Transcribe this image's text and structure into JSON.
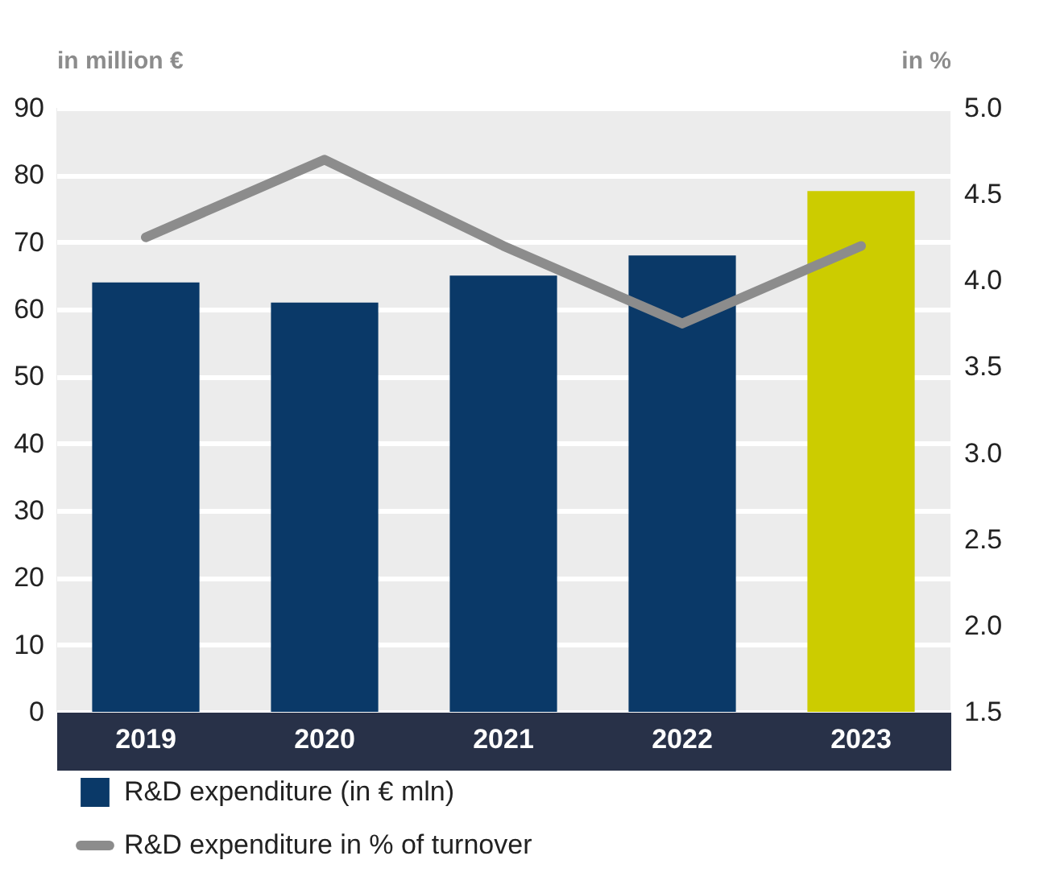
{
  "chart_data": {
    "type": "bar",
    "categories": [
      "2019",
      "2020",
      "2021",
      "2022",
      "2023"
    ],
    "ylabel": "in million €",
    "y2label": "in %",
    "ylim": [
      0,
      90
    ],
    "yticks": [
      0,
      10,
      20,
      30,
      40,
      50,
      60,
      70,
      80,
      90
    ],
    "y2lim": [
      1.5,
      5.0
    ],
    "y2ticks": [
      {
        "value": 1.5,
        "label": "1.5"
      },
      {
        "value": 2.0,
        "label": "2.0"
      },
      {
        "value": 2.5,
        "label": "2.5"
      },
      {
        "value": 3.0,
        "label": "3.0"
      },
      {
        "value": 3.5,
        "label": "3.5"
      },
      {
        "value": 4.0,
        "label": "4.0"
      },
      {
        "value": 4.5,
        "label": "4.5"
      },
      {
        "value": 5.0,
        "label": "5.0"
      }
    ],
    "grid": "y",
    "legend": "bottom",
    "series": [
      {
        "name": "R&D expenditure (in € mln)",
        "type": "bar",
        "color": "#0a3968",
        "colors": [
          "#0a3968",
          "#0a3968",
          "#0a3968",
          "#0a3968",
          "#cccc00"
        ],
        "values": [
          64,
          61,
          65,
          68,
          77.6
        ]
      },
      {
        "name": "R&D expenditure in % of turnover",
        "type": "line",
        "axis": "y2",
        "color": "#8c8c8c",
        "values": [
          4.25,
          4.7,
          4.2,
          3.75,
          4.2
        ]
      }
    ]
  }
}
